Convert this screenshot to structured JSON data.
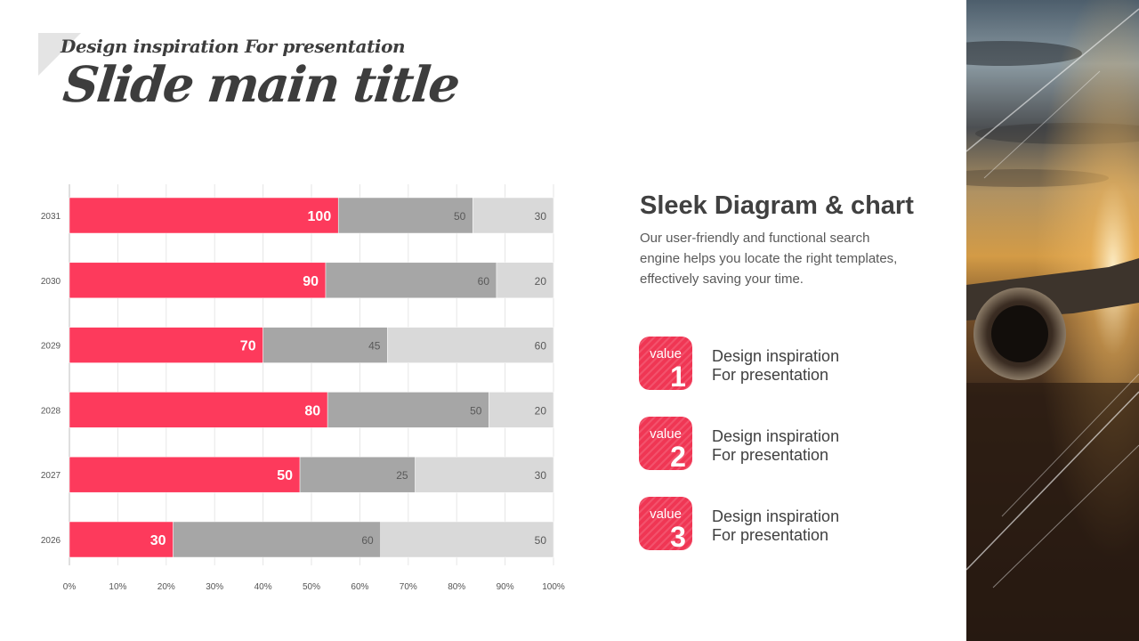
{
  "header": {
    "subtitle": "Design inspiration For presentation",
    "title": "Slide main title"
  },
  "chart_data": {
    "type": "bar",
    "orientation": "horizontal",
    "stacked": "percent",
    "categories": [
      "2031",
      "2030",
      "2029",
      "2028",
      "2027",
      "2026"
    ],
    "series": [
      {
        "values": [
          100,
          90,
          70,
          80,
          50,
          30
        ],
        "color": "#fd3a5c"
      },
      {
        "values": [
          50,
          60,
          45,
          50,
          25,
          60
        ],
        "color": "#a6a6a6"
      },
      {
        "values": [
          30,
          20,
          60,
          20,
          30,
          50
        ],
        "color": "#d9d9d9"
      }
    ],
    "x_ticks": [
      "0%",
      "10%",
      "20%",
      "30%",
      "40%",
      "50%",
      "60%",
      "70%",
      "80%",
      "90%",
      "100%"
    ],
    "xlim": [
      0,
      100
    ],
    "grid": "vertical",
    "legend": "none"
  },
  "info": {
    "title": "Sleek Diagram & chart",
    "description": "Our user-friendly and functional search engine helps you locate the right templates, effectively saving your time."
  },
  "values": [
    {
      "label": "value",
      "number": "1",
      "line1": "Design inspiration",
      "line2": "For presentation"
    },
    {
      "label": "value",
      "number": "2",
      "line1": "Design inspiration",
      "line2": "For presentation"
    },
    {
      "label": "value",
      "number": "3",
      "line1": "Design inspiration",
      "line2": "For presentation"
    }
  ],
  "colors": {
    "accent": "#fd3a5c",
    "badge": "#f03654",
    "text_dark": "#404040"
  }
}
